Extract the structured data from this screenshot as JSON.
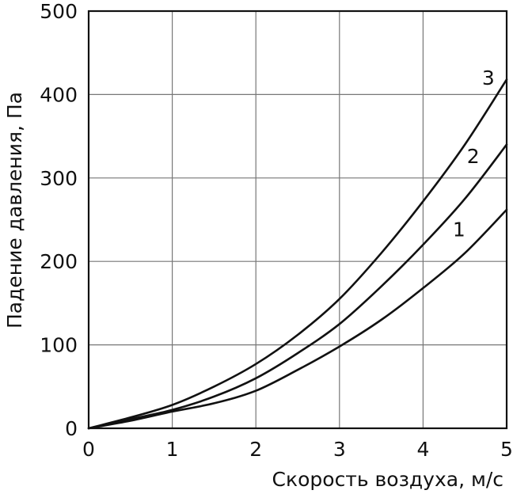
{
  "chart_data": {
    "type": "line",
    "xlabel": "Скорость воздуха, м/с",
    "ylabel": "Падение давления, Па",
    "xlim": [
      0,
      5
    ],
    "ylim": [
      0,
      500
    ],
    "x_ticks": [
      "0",
      "1",
      "2",
      "3",
      "4",
      "5"
    ],
    "y_ticks": [
      "0",
      "100",
      "200",
      "300",
      "400",
      "500"
    ],
    "grid": true,
    "series": [
      {
        "name": "1",
        "x": [
          0,
          0.5,
          1,
          1.5,
          2,
          2.5,
          3,
          3.5,
          4,
          4.5,
          5
        ],
        "values": [
          0,
          9,
          20,
          30,
          45,
          70,
          98,
          130,
          168,
          210,
          262
        ]
      },
      {
        "name": "2",
        "x": [
          0,
          0.5,
          1,
          1.5,
          2,
          2.5,
          3,
          3.5,
          4,
          4.5,
          5
        ],
        "values": [
          0,
          11,
          22,
          38,
          60,
          90,
          125,
          170,
          220,
          275,
          340
        ]
      },
      {
        "name": "3",
        "x": [
          0,
          0.5,
          1,
          1.5,
          2,
          2.5,
          3,
          3.5,
          4,
          4.5,
          5
        ],
        "values": [
          0,
          13,
          28,
          50,
          77,
          112,
          155,
          210,
          272,
          340,
          418
        ]
      }
    ]
  }
}
